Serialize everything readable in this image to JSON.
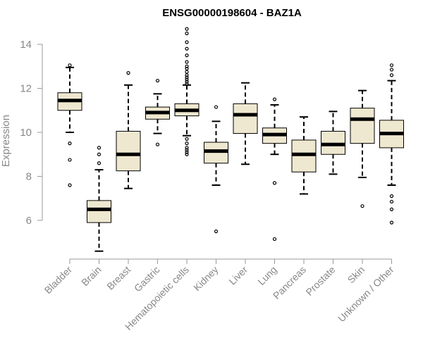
{
  "chart_data": {
    "type": "boxplot",
    "title": "ENSG00000198604 - BAZ1A",
    "xlabel": "",
    "ylabel": "Expression",
    "ylim": [
      4.6,
      15.0
    ],
    "yticks": [
      6,
      8,
      10,
      12,
      14
    ],
    "categories": [
      "Bladder",
      "Brain",
      "Breast",
      "Gastric",
      "Hematopoietic cells",
      "Kidney",
      "Liver",
      "Lung",
      "Pancreas",
      "Prostate",
      "Skin",
      "Unknown / Other"
    ],
    "box_color": "#efe8d0",
    "boxes": [
      {
        "category": "Bladder",
        "whisker_low": 10.0,
        "q1": 11.0,
        "median": 11.45,
        "q3": 11.8,
        "whisker_high": 12.95,
        "outliers": [
          13.05,
          9.5,
          8.75,
          7.6
        ]
      },
      {
        "category": "Brain",
        "whisker_low": 4.6,
        "q1": 5.9,
        "median": 6.5,
        "q3": 6.9,
        "whisker_high": 8.3,
        "outliers": [
          9.3,
          9.0,
          8.6
        ]
      },
      {
        "category": "Breast",
        "whisker_low": 7.45,
        "q1": 8.25,
        "median": 9.0,
        "q3": 10.05,
        "whisker_high": 12.15,
        "outliers": [
          12.7
        ]
      },
      {
        "category": "Gastric",
        "whisker_low": 9.95,
        "q1": 10.6,
        "median": 10.9,
        "q3": 11.15,
        "whisker_high": 11.75,
        "outliers": [
          12.35,
          9.45
        ]
      },
      {
        "category": "Hematopoietic cells",
        "whisker_low": 9.85,
        "q1": 10.75,
        "median": 11.0,
        "q3": 11.3,
        "whisker_high": 12.15,
        "outliers": [
          14.7,
          14.5,
          14.1,
          13.8,
          13.5,
          13.2,
          13.0,
          12.9,
          12.75,
          12.6,
          12.5,
          12.4,
          12.3,
          12.2,
          9.7,
          9.5,
          9.3,
          9.2,
          9.1,
          9.0
        ]
      },
      {
        "category": "Kidney",
        "whisker_low": 7.6,
        "q1": 8.6,
        "median": 9.15,
        "q3": 9.55,
        "whisker_high": 10.5,
        "outliers": [
          11.15,
          5.5
        ]
      },
      {
        "category": "Liver",
        "whisker_low": 8.55,
        "q1": 9.95,
        "median": 10.8,
        "q3": 11.3,
        "whisker_high": 12.25,
        "outliers": []
      },
      {
        "category": "Lung",
        "whisker_low": 9.0,
        "q1": 9.5,
        "median": 9.9,
        "q3": 10.2,
        "whisker_high": 11.25,
        "outliers": [
          11.5,
          7.7,
          5.15
        ]
      },
      {
        "category": "Pancreas",
        "whisker_low": 7.2,
        "q1": 8.2,
        "median": 9.0,
        "q3": 9.65,
        "whisker_high": 10.7,
        "outliers": []
      },
      {
        "category": "Prostate",
        "whisker_low": 8.1,
        "q1": 9.0,
        "median": 9.45,
        "q3": 10.05,
        "whisker_high": 10.95,
        "outliers": []
      },
      {
        "category": "Skin",
        "whisker_low": 7.95,
        "q1": 9.5,
        "median": 10.6,
        "q3": 11.1,
        "whisker_high": 11.9,
        "outliers": [
          6.65
        ]
      },
      {
        "category": "Unknown / Other",
        "whisker_low": 7.6,
        "q1": 9.3,
        "median": 9.95,
        "q3": 10.55,
        "whisker_high": 12.35,
        "outliers": [
          13.05,
          12.85,
          12.6,
          7.1,
          6.85,
          6.5,
          5.9
        ]
      }
    ]
  }
}
